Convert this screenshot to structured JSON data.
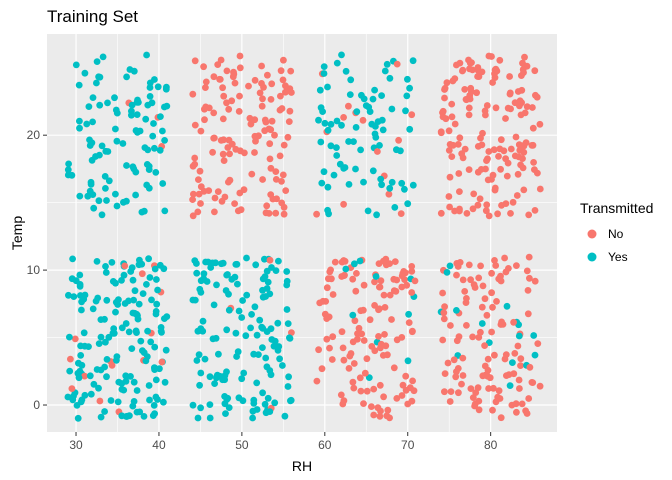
{
  "chart_data": {
    "type": "scatter",
    "title": "Training Set",
    "xlabel": "RH",
    "ylabel": "Temp",
    "xlim": [
      26.5,
      88
    ],
    "ylim": [
      -2,
      27.5
    ],
    "x_ticks": [
      30,
      40,
      50,
      60,
      70,
      80
    ],
    "y_ticks": [
      0,
      10,
      20
    ],
    "grid": true,
    "panel_background": "#ebebeb",
    "legend": {
      "title": "Transmitted",
      "position": "right",
      "entries": [
        {
          "label": "No",
          "color": "#f8766d"
        },
        {
          "label": "Yes",
          "color": "#00bfc4"
        }
      ]
    },
    "clusters": [
      {
        "rh_range": [
          29,
          41
        ],
        "temp_range": [
          14,
          26
        ],
        "count": 105,
        "series": "Yes",
        "mix": 0.03
      },
      {
        "rh_range": [
          44,
          56
        ],
        "temp_range": [
          14,
          26
        ],
        "count": 135,
        "series": "No",
        "mix": 0.0
      },
      {
        "rh_range": [
          59,
          71
        ],
        "temp_range": [
          14,
          26
        ],
        "count": 95,
        "series": "Yes",
        "mix": 0.1
      },
      {
        "rh_range": [
          74,
          86
        ],
        "temp_range": [
          14,
          26
        ],
        "count": 160,
        "series": "No",
        "mix": 0.0
      },
      {
        "rh_range": [
          29,
          41
        ],
        "temp_range": [
          -1,
          11
        ],
        "count": 175,
        "series": "Yes",
        "mix": 0.08
      },
      {
        "rh_range": [
          44,
          56
        ],
        "temp_range": [
          -1,
          11
        ],
        "count": 145,
        "series": "Yes",
        "mix": 0.02
      },
      {
        "rh_range": [
          59,
          71
        ],
        "temp_range": [
          -1,
          11
        ],
        "count": 140,
        "series": "No",
        "mix": 0.05
      },
      {
        "rh_range": [
          74,
          86
        ],
        "temp_range": [
          -1,
          11
        ],
        "count": 135,
        "series": "No",
        "mix": 0.12
      }
    ]
  }
}
